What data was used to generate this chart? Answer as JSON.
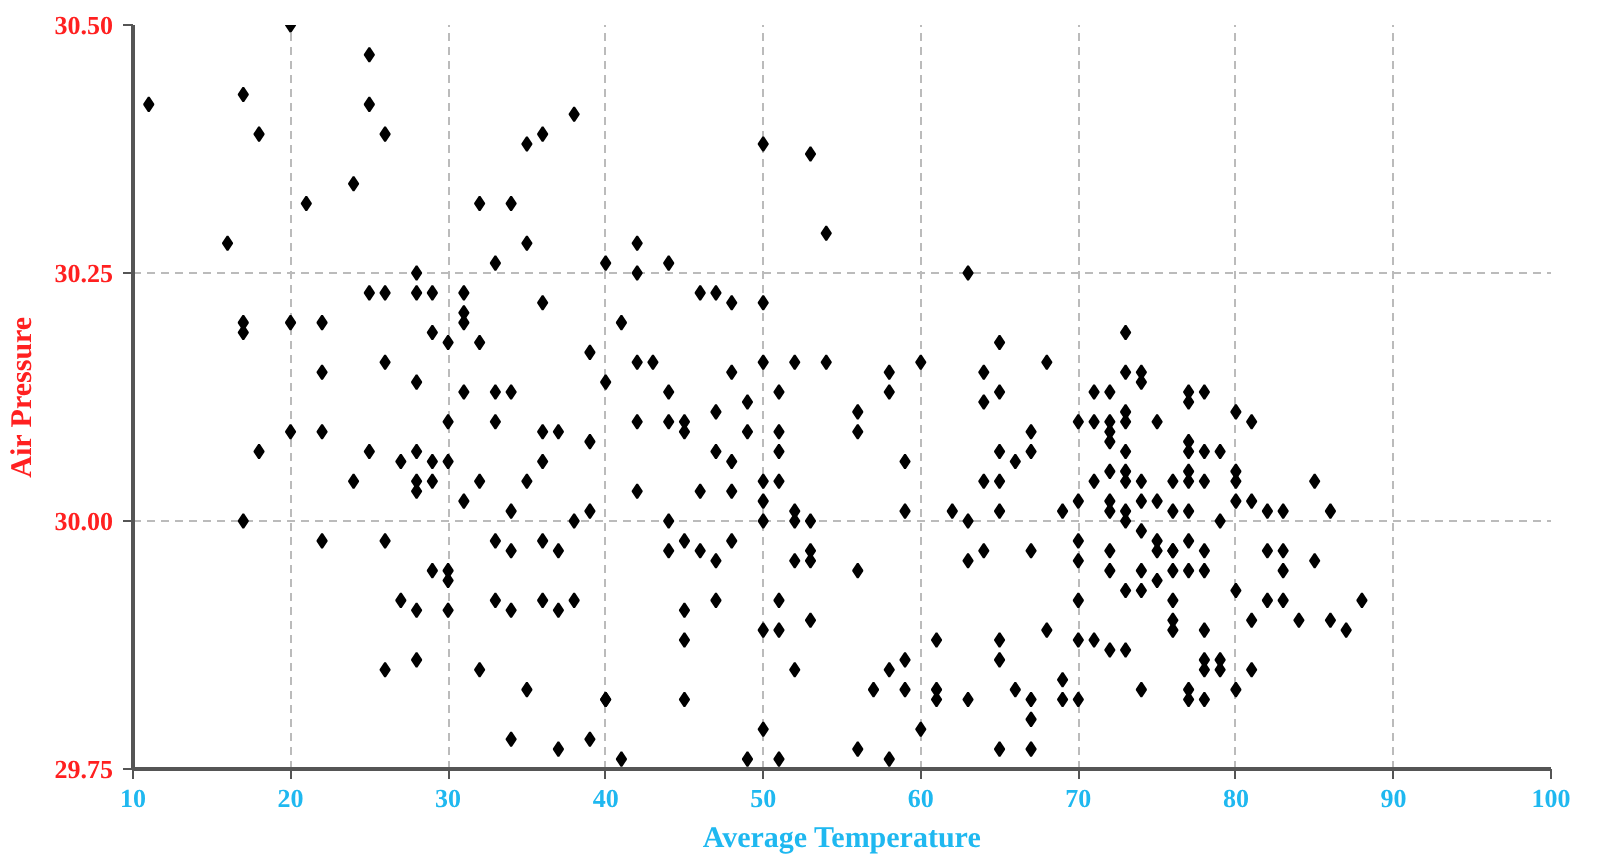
{
  "chart_data": {
    "type": "scatter",
    "xlabel": "Average Temperature",
    "ylabel": "Air Pressure",
    "xlim": [
      10,
      100
    ],
    "xticks": [
      10,
      20,
      30,
      40,
      50,
      60,
      70,
      80,
      90,
      100
    ],
    "ylim": [
      29.75,
      30.5
    ],
    "yticks": [
      {
        "value": 29.75,
        "label": "29.75"
      },
      {
        "value": 30.0,
        "label": "30.00"
      },
      {
        "value": 30.25,
        "label": "30.25"
      },
      {
        "value": 30.5,
        "label": "30.50"
      }
    ],
    "grid": true,
    "marker": "diamond",
    "series": [
      {
        "color": "#000000",
        "x": [
          11,
          20,
          25,
          17,
          25,
          18,
          26,
          21,
          24,
          16,
          32,
          34,
          35,
          36,
          38,
          33,
          35,
          28,
          25,
          26,
          28,
          29,
          31,
          36,
          17,
          17,
          20,
          22,
          31,
          31,
          29,
          30,
          32,
          39,
          26,
          22,
          28,
          31,
          33,
          34,
          30,
          33,
          20,
          22,
          18,
          25,
          28,
          36,
          37,
          39,
          27,
          29,
          30,
          24,
          28,
          29,
          28,
          32,
          35,
          36,
          31,
          34,
          39,
          38,
          17,
          22,
          26,
          33,
          34,
          36,
          37,
          29,
          30,
          30,
          27,
          28,
          30,
          33,
          34,
          36,
          38,
          37,
          26,
          28,
          32,
          35,
          34,
          37,
          39,
          40,
          40,
          42,
          42,
          44,
          41,
          40,
          42,
          43,
          46,
          47,
          48,
          50,
          50,
          53,
          54,
          63,
          44,
          44,
          45,
          45,
          42,
          48,
          49,
          47,
          50,
          52,
          54,
          51,
          51,
          51,
          49,
          47,
          48,
          42,
          46,
          48,
          50,
          50,
          51,
          50,
          52,
          52,
          53,
          44,
          45,
          44,
          46,
          47,
          48,
          53,
          53,
          52,
          56,
          51,
          45,
          45,
          47,
          50,
          51,
          53,
          52,
          40,
          45,
          50,
          49,
          51,
          41,
          56,
          56,
          58,
          58,
          60,
          59,
          59,
          62,
          63,
          63,
          64,
          67,
          65,
          64,
          64,
          65,
          65,
          65,
          66,
          67,
          67,
          64,
          65,
          68,
          61,
          59,
          58,
          57,
          59,
          61,
          61,
          63,
          65,
          65,
          66,
          67,
          67,
          68,
          56,
          58,
          60,
          65,
          67,
          69,
          69,
          69,
          70,
          73,
          73,
          74,
          74,
          71,
          72,
          70,
          71,
          72,
          72,
          72,
          73,
          73,
          75,
          77,
          78,
          77,
          80,
          81,
          77,
          77,
          78,
          79,
          73,
          72,
          73,
          77,
          77,
          78,
          76,
          71,
          73,
          74,
          70,
          72,
          74,
          75,
          73,
          72,
          73,
          74,
          76,
          77,
          80,
          80,
          80,
          81,
          82,
          83,
          79,
          85,
          86,
          70,
          70,
          72,
          75,
          76,
          77,
          78,
          75,
          76,
          76,
          77,
          78,
          72,
          74,
          74,
          73,
          75,
          82,
          83,
          83,
          85,
          80,
          70,
          76,
          76,
          76,
          81,
          82,
          83,
          84,
          86,
          87,
          88,
          78,
          70,
          71,
          72,
          73,
          78,
          79,
          78,
          79,
          81,
          74,
          77,
          77,
          78,
          80
        ],
        "values": [
          30.42,
          30.5,
          30.47,
          30.43,
          30.42,
          30.39,
          30.39,
          30.32,
          30.34,
          30.28,
          30.32,
          30.32,
          30.38,
          30.39,
          30.41,
          30.26,
          30.28,
          30.25,
          30.23,
          30.23,
          30.23,
          30.23,
          30.23,
          30.22,
          30.2,
          30.19,
          30.2,
          30.2,
          30.21,
          30.2,
          30.19,
          30.18,
          30.18,
          30.17,
          30.16,
          30.15,
          30.14,
          30.13,
          30.13,
          30.13,
          30.1,
          30.1,
          30.09,
          30.09,
          30.07,
          30.07,
          30.07,
          30.09,
          30.09,
          30.08,
          30.06,
          30.06,
          30.06,
          30.04,
          30.04,
          30.04,
          30.03,
          30.04,
          30.04,
          30.06,
          30.02,
          30.01,
          30.01,
          30.0,
          30.0,
          29.98,
          29.98,
          29.98,
          29.97,
          29.98,
          29.97,
          29.95,
          29.95,
          29.94,
          29.92,
          29.91,
          29.91,
          29.92,
          29.91,
          29.92,
          29.92,
          29.91,
          29.85,
          29.86,
          29.85,
          29.83,
          29.78,
          29.77,
          29.78,
          29.82,
          30.26,
          30.28,
          30.25,
          30.26,
          30.2,
          30.14,
          30.16,
          30.16,
          30.23,
          30.23,
          30.22,
          30.22,
          30.38,
          30.37,
          30.29,
          30.25,
          30.13,
          30.1,
          30.1,
          30.09,
          30.1,
          30.15,
          30.12,
          30.11,
          30.16,
          30.16,
          30.16,
          30.13,
          30.09,
          30.07,
          30.09,
          30.07,
          30.06,
          30.03,
          30.03,
          30.03,
          30.04,
          30.02,
          30.04,
          30.0,
          30.01,
          30.0,
          30.0,
          30.0,
          29.98,
          29.97,
          29.97,
          29.96,
          29.98,
          29.97,
          29.96,
          29.96,
          29.95,
          29.92,
          29.91,
          29.88,
          29.92,
          29.89,
          29.89,
          29.9,
          29.85,
          29.82,
          29.82,
          29.79,
          29.76,
          29.76,
          29.76,
          30.11,
          30.09,
          30.15,
          30.13,
          30.16,
          30.06,
          30.01,
          30.01,
          30.0,
          29.96,
          29.97,
          29.97,
          30.01,
          30.15,
          30.12,
          30.18,
          30.13,
          30.07,
          30.06,
          30.07,
          30.09,
          30.04,
          30.04,
          30.16,
          29.88,
          29.86,
          29.85,
          29.83,
          29.83,
          29.83,
          29.82,
          29.82,
          29.88,
          29.86,
          29.83,
          29.82,
          29.8,
          29.89,
          29.77,
          29.76,
          29.79,
          29.77,
          29.77,
          30.01,
          29.84,
          29.82,
          29.82,
          30.19,
          30.15,
          30.15,
          30.14,
          30.13,
          30.13,
          30.1,
          30.1,
          30.1,
          30.09,
          30.08,
          30.11,
          30.1,
          30.1,
          30.13,
          30.13,
          30.12,
          30.11,
          30.1,
          30.08,
          30.07,
          30.07,
          30.07,
          30.07,
          30.05,
          30.05,
          30.05,
          30.04,
          30.04,
          30.04,
          30.04,
          30.04,
          30.04,
          30.02,
          30.02,
          30.02,
          30.02,
          30.01,
          30.01,
          30.0,
          29.99,
          30.01,
          30.01,
          30.05,
          30.04,
          30.02,
          30.02,
          30.01,
          30.01,
          30.0,
          30.04,
          30.01,
          29.98,
          29.96,
          29.97,
          29.98,
          29.97,
          29.98,
          29.97,
          29.97,
          29.97,
          29.95,
          29.95,
          29.95,
          29.95,
          29.95,
          29.93,
          29.93,
          29.94,
          29.97,
          29.97,
          29.95,
          29.96,
          29.93,
          29.92,
          29.92,
          29.9,
          29.89,
          29.9,
          29.92,
          29.92,
          29.9,
          29.9,
          29.89,
          29.92,
          29.89,
          29.88,
          29.88,
          29.87,
          29.87,
          29.86,
          29.86,
          29.85,
          29.85,
          29.85,
          29.83,
          29.83,
          29.82,
          29.82,
          29.83
        ]
      }
    ]
  }
}
